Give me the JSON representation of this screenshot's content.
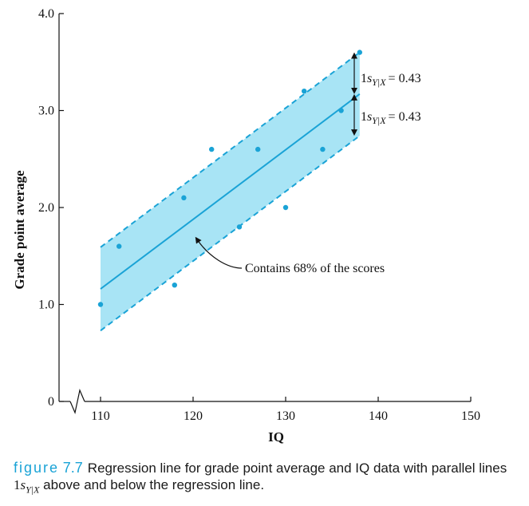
{
  "chart_data": {
    "type": "scatter",
    "xlabel": "IQ",
    "ylabel": "Grade point average",
    "xlim": [
      110,
      150
    ],
    "ylim": [
      0,
      4.0
    ],
    "x_ticks": [
      110,
      120,
      130,
      140,
      150
    ],
    "y_ticks": [
      0,
      1.0,
      2.0,
      3.0,
      4.0
    ],
    "y_tick_labels": [
      "0",
      "1.0",
      "2.0",
      "3.0",
      "4.0"
    ],
    "x_axis_break": true,
    "points": [
      {
        "x": 110,
        "y": 1.0
      },
      {
        "x": 112,
        "y": 1.6
      },
      {
        "x": 118,
        "y": 1.2
      },
      {
        "x": 119,
        "y": 2.1
      },
      {
        "x": 122,
        "y": 2.6
      },
      {
        "x": 125,
        "y": 1.8
      },
      {
        "x": 127,
        "y": 2.6
      },
      {
        "x": 130,
        "y": 2.0
      },
      {
        "x": 132,
        "y": 3.2
      },
      {
        "x": 134,
        "y": 2.6
      },
      {
        "x": 136,
        "y": 3.0
      },
      {
        "x": 138,
        "y": 3.6
      }
    ],
    "regression": {
      "x_start": 110,
      "x_end": 138,
      "y_start": 1.16,
      "y_end": 3.17
    },
    "band_offset": 0.43,
    "sd_label_prefix": "1",
    "sd_label_symbol": "s",
    "sd_label_subscript": "Y|X",
    "sd_label_value": "= 0.43",
    "band_annotation": "Contains 68% of the scores",
    "colors": {
      "band_fill": "#a8e4f5",
      "line": "#1aa3d6",
      "points": "#1aa3d6",
      "axis": "#111111"
    }
  },
  "caption": {
    "figure_word": "figure",
    "figure_number": "7.7",
    "text_before": "Regression line for grade point average and IQ data with parallel lines ",
    "math_prefix": "1",
    "math_symbol": "s",
    "math_subscript": "Y|X",
    "text_after": " above and below the regression line."
  }
}
